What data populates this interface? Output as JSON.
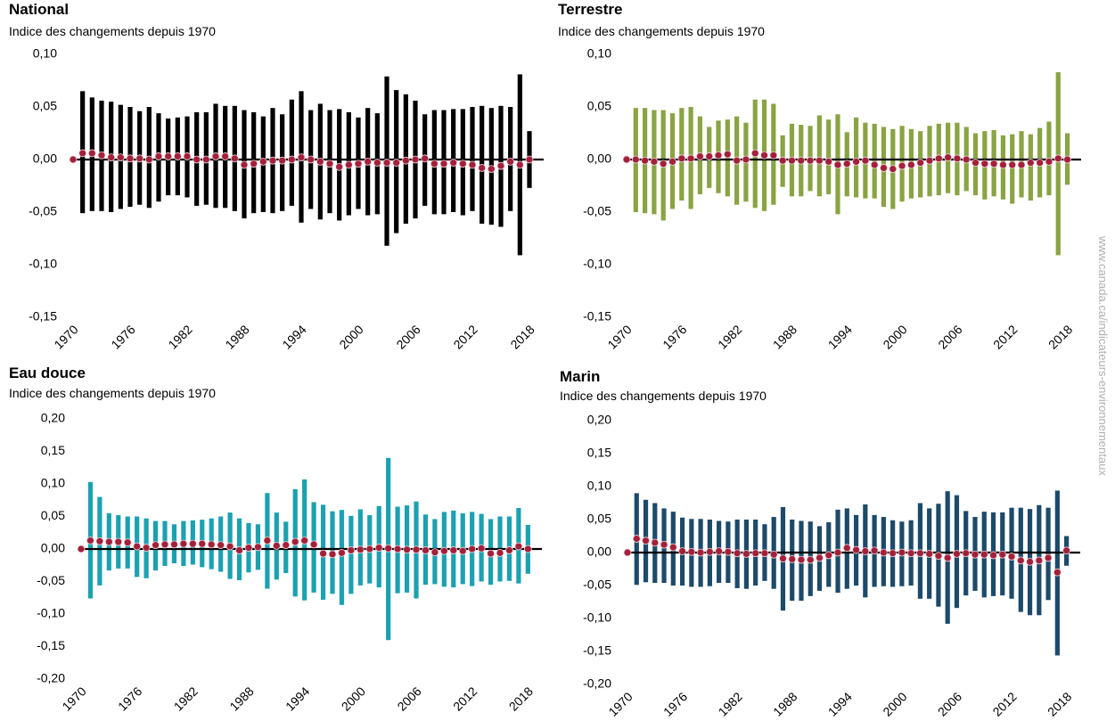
{
  "source": "www.canada.ca/indicateurs-environnementaux",
  "chart_data": [
    {
      "type": "range",
      "title": "National",
      "subtitle": "Indice des changements depuis 1970",
      "color": "#000000",
      "dot_color": "#a3203a",
      "x": [
        1970,
        1971,
        1972,
        1973,
        1974,
        1975,
        1976,
        1977,
        1978,
        1979,
        1980,
        1981,
        1982,
        1983,
        1984,
        1985,
        1986,
        1987,
        1988,
        1989,
        1990,
        1991,
        1992,
        1993,
        1994,
        1995,
        1996,
        1997,
        1998,
        1999,
        2000,
        2001,
        2002,
        2003,
        2004,
        2005,
        2006,
        2007,
        2008,
        2009,
        2010,
        2011,
        2012,
        2013,
        2014,
        2015,
        2016,
        2017,
        2018
      ],
      "values": [
        0,
        0.006,
        0.006,
        0.004,
        0.002,
        0.002,
        0.001,
        0.001,
        0,
        0.003,
        0.003,
        0.003,
        0.003,
        0,
        0,
        0.003,
        0.003,
        0.001,
        -0.005,
        -0.004,
        -0.002,
        -0.001,
        -0.001,
        0,
        0.002,
        0,
        -0.002,
        -0.004,
        -0.007,
        -0.005,
        -0.004,
        -0.002,
        -0.003,
        -0.003,
        -0.003,
        -0.001,
        0,
        0.001,
        -0.004,
        -0.004,
        -0.003,
        -0.004,
        -0.005,
        -0.008,
        -0.009,
        -0.006,
        -0.002,
        -0.005,
        0
      ],
      "high": [
        null,
        0.065,
        0.059,
        0.056,
        0.055,
        0.052,
        0.05,
        0.046,
        0.05,
        0.044,
        0.039,
        0.04,
        0.041,
        0.045,
        0.045,
        0.053,
        0.051,
        0.051,
        0.047,
        0.045,
        0.041,
        0.049,
        0.043,
        0.057,
        0.065,
        0.047,
        0.053,
        0.047,
        0.048,
        0.045,
        0.04,
        0.049,
        0.044,
        0.079,
        0.066,
        0.062,
        0.056,
        0.043,
        0.047,
        0.047,
        0.048,
        0.048,
        0.05,
        0.051,
        0.049,
        0.051,
        0.05,
        0.081,
        0.027
      ],
      "low": [
        null,
        -0.051,
        -0.049,
        -0.049,
        -0.05,
        -0.047,
        -0.045,
        -0.043,
        -0.046,
        -0.04,
        -0.034,
        -0.034,
        -0.036,
        -0.044,
        -0.043,
        -0.046,
        -0.046,
        -0.049,
        -0.056,
        -0.051,
        -0.05,
        -0.051,
        -0.049,
        -0.044,
        -0.06,
        -0.047,
        -0.057,
        -0.051,
        -0.058,
        -0.053,
        -0.047,
        -0.053,
        -0.052,
        -0.082,
        -0.07,
        -0.061,
        -0.056,
        -0.044,
        -0.052,
        -0.052,
        -0.05,
        -0.053,
        -0.049,
        -0.061,
        -0.062,
        -0.064,
        -0.049,
        -0.091,
        -0.027
      ],
      "xlim": [
        1970,
        2019.5
      ],
      "xticks": [
        1970,
        1976,
        1982,
        1988,
        1994,
        2000,
        2006,
        2012,
        2018
      ],
      "ylim": [
        -0.15,
        0.1
      ],
      "yticks": [
        {
          "value": 0.1,
          "label": "0,10"
        },
        {
          "value": 0.05,
          "label": "0,05"
        },
        {
          "value": 0,
          "label": "0,00"
        },
        {
          "value": -0.05,
          "label": "-0,05"
        },
        {
          "value": -0.1,
          "label": "-0,10"
        },
        {
          "value": -0.15,
          "label": "-0,15"
        }
      ]
    },
    {
      "type": "range",
      "title": "Terrestre",
      "subtitle": "Indice des changements depuis 1970",
      "color": "#8aa343",
      "dot_color": "#a3203a",
      "x": [
        1970,
        1971,
        1972,
        1973,
        1974,
        1975,
        1976,
        1977,
        1978,
        1979,
        1980,
        1981,
        1982,
        1983,
        1984,
        1985,
        1986,
        1987,
        1988,
        1989,
        1990,
        1991,
        1992,
        1993,
        1994,
        1995,
        1996,
        1997,
        1998,
        1999,
        2000,
        2001,
        2002,
        2003,
        2004,
        2005,
        2006,
        2007,
        2008,
        2009,
        2010,
        2011,
        2012,
        2013,
        2014,
        2015,
        2016,
        2017,
        2018
      ],
      "values": [
        0,
        0,
        -0.001,
        -0.002,
        -0.004,
        -0.002,
        0.001,
        0.001,
        0.003,
        0.003,
        0.004,
        0.005,
        -0.001,
        0,
        0.006,
        0.004,
        0.004,
        -0.001,
        -0.001,
        -0.001,
        -0.001,
        -0.001,
        -0.002,
        -0.005,
        -0.004,
        -0.002,
        -0.001,
        -0.005,
        -0.008,
        -0.009,
        -0.006,
        -0.005,
        -0.003,
        -0.001,
        0.001,
        0.002,
        0.001,
        0,
        -0.003,
        -0.004,
        -0.004,
        -0.005,
        -0.005,
        -0.005,
        -0.003,
        -0.003,
        -0.002,
        0.001,
        0
      ],
      "high": [
        null,
        0.049,
        0.049,
        0.047,
        0.047,
        0.044,
        0.049,
        0.05,
        0.041,
        0.031,
        0.037,
        0.038,
        0.041,
        0.035,
        0.057,
        0.057,
        0.053,
        0.023,
        0.034,
        0.033,
        0.032,
        0.042,
        0.038,
        0.043,
        0.026,
        0.04,
        0.035,
        0.034,
        0.031,
        0.029,
        0.032,
        0.029,
        0.027,
        0.032,
        0.034,
        0.035,
        0.035,
        0.031,
        0.025,
        0.027,
        0.028,
        0.023,
        0.024,
        0.027,
        0.024,
        0.03,
        0.036,
        0.083,
        0.025
      ],
      "low": [
        null,
        -0.05,
        -0.051,
        -0.052,
        -0.058,
        -0.047,
        -0.039,
        -0.047,
        -0.033,
        -0.027,
        -0.032,
        -0.035,
        -0.043,
        -0.04,
        -0.046,
        -0.049,
        -0.043,
        -0.026,
        -0.035,
        -0.035,
        -0.03,
        -0.035,
        -0.033,
        -0.052,
        -0.035,
        -0.036,
        -0.037,
        -0.037,
        -0.045,
        -0.047,
        -0.04,
        -0.037,
        -0.036,
        -0.035,
        -0.034,
        -0.032,
        -0.034,
        -0.03,
        -0.034,
        -0.038,
        -0.035,
        -0.038,
        -0.042,
        -0.036,
        -0.039,
        -0.036,
        -0.034,
        -0.091,
        -0.024
      ],
      "xlim": [
        1970,
        2019.5
      ],
      "xticks": [
        1970,
        1976,
        1982,
        1988,
        1994,
        2000,
        2006,
        2012,
        2018
      ],
      "ylim": [
        -0.15,
        0.1
      ],
      "yticks": [
        {
          "value": 0.1,
          "label": "0,10"
        },
        {
          "value": 0.05,
          "label": "0,05"
        },
        {
          "value": 0,
          "label": "0,00"
        },
        {
          "value": -0.05,
          "label": "-0,05"
        },
        {
          "value": -0.1,
          "label": "-0,10"
        },
        {
          "value": -0.15,
          "label": "-0,15"
        }
      ]
    },
    {
      "type": "range",
      "title": "Eau douce",
      "subtitle": "Indice des changements depuis 1970",
      "color": "#1ba1b1",
      "dot_color": "#a3203a",
      "x": [
        1970,
        1971,
        1972,
        1973,
        1974,
        1975,
        1976,
        1977,
        1978,
        1979,
        1980,
        1981,
        1982,
        1983,
        1984,
        1985,
        1986,
        1987,
        1988,
        1989,
        1990,
        1991,
        1992,
        1993,
        1994,
        1995,
        1996,
        1997,
        1998,
        1999,
        2000,
        2001,
        2002,
        2003,
        2004,
        2005,
        2006,
        2007,
        2008,
        2009,
        2010,
        2011,
        2012,
        2013,
        2014,
        2015,
        2016,
        2017,
        2018
      ],
      "values": [
        0,
        0.013,
        0.012,
        0.011,
        0.011,
        0.01,
        0.004,
        0.002,
        0.006,
        0.007,
        0.007,
        0.008,
        0.008,
        0.008,
        0.007,
        0.006,
        0.004,
        -0.002,
        0.002,
        0.003,
        0.013,
        0.005,
        0.006,
        0.011,
        0.013,
        0.007,
        -0.007,
        -0.008,
        -0.006,
        -0.002,
        -0.001,
        0,
        0.002,
        0.001,
        0,
        -0.001,
        -0.001,
        -0.002,
        -0.005,
        -0.003,
        -0.002,
        -0.003,
        0,
        0.001,
        -0.007,
        -0.006,
        -0.002,
        0.004,
        0
      ],
      "high": [
        null,
        0.103,
        0.08,
        0.055,
        0.052,
        0.05,
        0.05,
        0.047,
        0.043,
        0.043,
        0.038,
        0.043,
        0.044,
        0.045,
        0.047,
        0.05,
        0.056,
        0.047,
        0.04,
        0.038,
        0.086,
        0.056,
        0.042,
        0.092,
        0.107,
        0.072,
        0.068,
        0.058,
        0.06,
        0.051,
        0.061,
        0.052,
        0.066,
        0.14,
        0.065,
        0.067,
        0.073,
        0.053,
        0.046,
        0.057,
        0.059,
        0.055,
        0.057,
        0.054,
        0.046,
        0.05,
        0.05,
        0.063,
        0.037
      ],
      "low": [
        null,
        -0.076,
        -0.056,
        -0.033,
        -0.03,
        -0.03,
        -0.043,
        -0.045,
        -0.033,
        -0.026,
        -0.022,
        -0.026,
        -0.024,
        -0.028,
        -0.031,
        -0.035,
        -0.046,
        -0.048,
        -0.036,
        -0.032,
        -0.061,
        -0.047,
        -0.037,
        -0.073,
        -0.079,
        -0.067,
        -0.078,
        -0.069,
        -0.086,
        -0.069,
        -0.056,
        -0.053,
        -0.059,
        -0.14,
        -0.068,
        -0.067,
        -0.076,
        -0.055,
        -0.054,
        -0.058,
        -0.059,
        -0.054,
        -0.057,
        -0.05,
        -0.055,
        -0.05,
        -0.049,
        -0.053,
        -0.038
      ],
      "xlim": [
        1970,
        2019.5
      ],
      "xticks": [
        1970,
        1976,
        1982,
        1988,
        1994,
        2000,
        2006,
        2012,
        2018
      ],
      "ylim": [
        -0.2,
        0.2
      ],
      "yticks": [
        {
          "value": 0.2,
          "label": "0,20"
        },
        {
          "value": 0.15,
          "label": "0,15"
        },
        {
          "value": 0.1,
          "label": "0,10"
        },
        {
          "value": 0.05,
          "label": "0,05"
        },
        {
          "value": 0,
          "label": "0,00"
        },
        {
          "value": -0.05,
          "label": "-0,05"
        },
        {
          "value": -0.1,
          "label": "-0,10"
        },
        {
          "value": -0.15,
          "label": "-0,15"
        },
        {
          "value": -0.2,
          "label": "-0,20"
        }
      ]
    },
    {
      "type": "range",
      "title": "Marin",
      "subtitle": "Indice des changements depuis 1970",
      "color": "#1c4a6b",
      "dot_color": "#a3203a",
      "x": [
        1970,
        1971,
        1972,
        1973,
        1974,
        1975,
        1976,
        1977,
        1978,
        1979,
        1980,
        1981,
        1982,
        1983,
        1984,
        1985,
        1986,
        1987,
        1988,
        1989,
        1990,
        1991,
        1992,
        1993,
        1994,
        1995,
        1996,
        1997,
        1998,
        1999,
        2000,
        2001,
        2002,
        2003,
        2004,
        2005,
        2006,
        2007,
        2008,
        2009,
        2010,
        2011,
        2012,
        2013,
        2014,
        2015,
        2016,
        2017,
        2018
      ],
      "values": [
        0,
        0.021,
        0.018,
        0.015,
        0.012,
        0.008,
        0.002,
        0.001,
        0,
        0.001,
        0.002,
        0.001,
        -0.001,
        -0.002,
        -0.001,
        -0.001,
        -0.003,
        -0.009,
        -0.01,
        -0.011,
        -0.011,
        -0.008,
        -0.004,
        0,
        0.007,
        0.004,
        0.002,
        0.003,
        0,
        -0.001,
        0,
        -0.001,
        -0.001,
        -0.002,
        -0.005,
        -0.008,
        -0.002,
        -0.001,
        -0.003,
        -0.003,
        -0.004,
        -0.003,
        -0.006,
        -0.012,
        -0.014,
        -0.012,
        -0.008,
        -0.03,
        0.003
      ],
      "high": [
        null,
        0.09,
        0.08,
        0.075,
        0.067,
        0.062,
        0.053,
        0.051,
        0.051,
        0.05,
        0.048,
        0.047,
        0.05,
        0.05,
        0.05,
        0.043,
        0.054,
        0.069,
        0.05,
        0.048,
        0.047,
        0.04,
        0.046,
        0.065,
        0.067,
        0.057,
        0.073,
        0.057,
        0.054,
        0.049,
        0.047,
        0.049,
        0.075,
        0.067,
        0.074,
        0.093,
        0.087,
        0.063,
        0.054,
        0.062,
        0.061,
        0.061,
        0.068,
        0.068,
        0.066,
        0.072,
        0.068,
        0.094,
        0.025
      ],
      "low": [
        null,
        -0.049,
        -0.045,
        -0.046,
        -0.046,
        -0.05,
        -0.05,
        -0.052,
        -0.052,
        -0.051,
        -0.046,
        -0.046,
        -0.054,
        -0.055,
        -0.05,
        -0.043,
        -0.055,
        -0.088,
        -0.073,
        -0.073,
        -0.066,
        -0.058,
        -0.052,
        -0.061,
        -0.055,
        -0.05,
        -0.068,
        -0.052,
        -0.051,
        -0.052,
        -0.051,
        -0.05,
        -0.07,
        -0.07,
        -0.082,
        -0.108,
        -0.084,
        -0.065,
        -0.058,
        -0.068,
        -0.066,
        -0.065,
        -0.07,
        -0.09,
        -0.095,
        -0.095,
        -0.072,
        -0.156,
        -0.02
      ],
      "xlim": [
        1970,
        2019.5
      ],
      "xticks": [
        1970,
        1976,
        1982,
        1988,
        1994,
        2000,
        2006,
        2012,
        2018
      ],
      "ylim": [
        -0.2,
        0.2
      ],
      "yticks": [
        {
          "value": 0.2,
          "label": "0,20"
        },
        {
          "value": 0.15,
          "label": "0,15"
        },
        {
          "value": 0.1,
          "label": "0,10"
        },
        {
          "value": 0.05,
          "label": "0,05"
        },
        {
          "value": 0,
          "label": "0,00"
        },
        {
          "value": -0.05,
          "label": "-0,05"
        },
        {
          "value": -0.1,
          "label": "-0,10"
        },
        {
          "value": -0.15,
          "label": "-0,15"
        },
        {
          "value": -0.2,
          "label": "-0,20"
        }
      ]
    }
  ]
}
